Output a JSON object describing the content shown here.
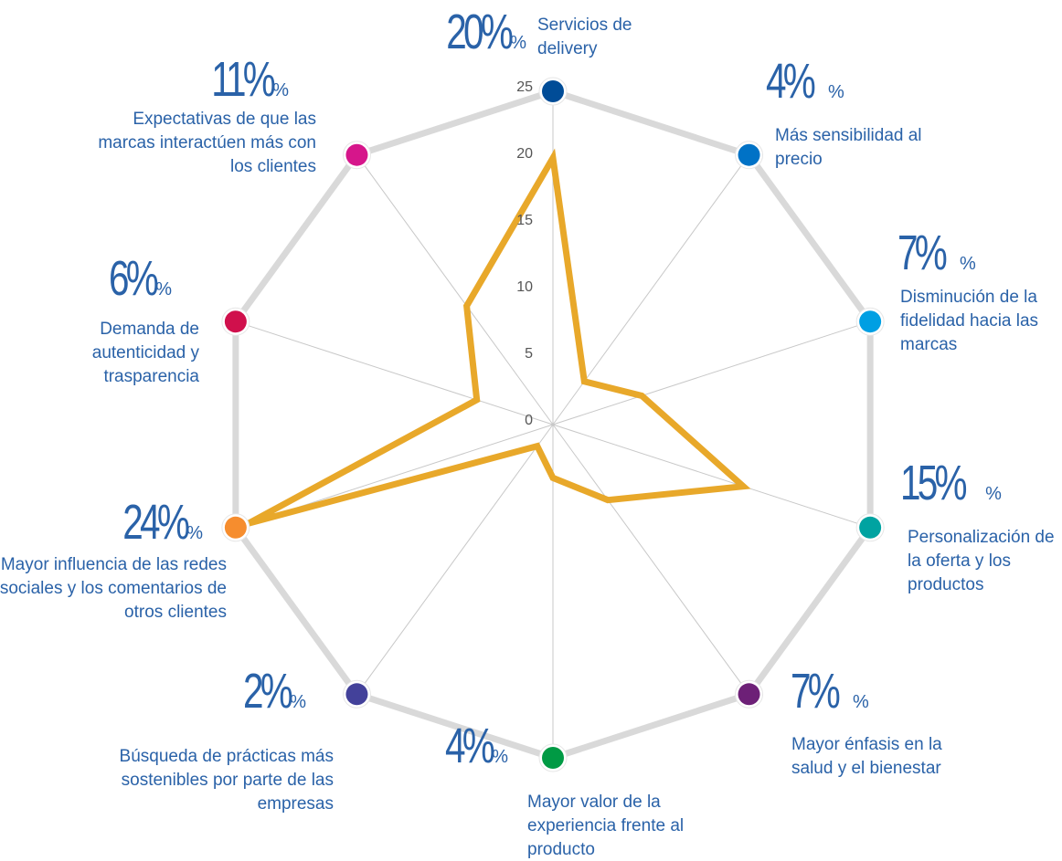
{
  "chart_data": {
    "type": "radar",
    "categories": [
      "Servicios de delivery",
      "Más sensibilidad al precio",
      "Disminución de la fidelidad hacia las marcas",
      "Personalización de la oferta y los productos",
      "Mayor énfasis en la salud y el bienestar",
      "Mayor valor de la experiencia frente al producto",
      "Búsqueda de prácticas más sostenibles por parte de las empresas",
      "Mayor influencia de las redes sociales y los comentarios de otros clientes",
      "Demanda de autenticidad y trasparencia",
      "Expectativas de que las marcas interactúen más con los clientes"
    ],
    "values": [
      20,
      4,
      7,
      15,
      7,
      4,
      2,
      24,
      6,
      11
    ],
    "value_labels": [
      "20%",
      "4%",
      "7%",
      "15%",
      "7%",
      "4%",
      "2%",
      "24%",
      "6%",
      "11%"
    ],
    "value_label_suffix": "%",
    "color": "#e8a82a",
    "category_colors": [
      "#004c97",
      "#0072c6",
      "#009fe3",
      "#00a3a1",
      "#6d2077",
      "#009a44",
      "#43419a",
      "#f68d2e",
      "#d0104c",
      "#d6168b"
    ],
    "ylim": [
      0,
      25
    ],
    "yticks": [
      0,
      5,
      10,
      15,
      20,
      25
    ],
    "grid": true
  }
}
